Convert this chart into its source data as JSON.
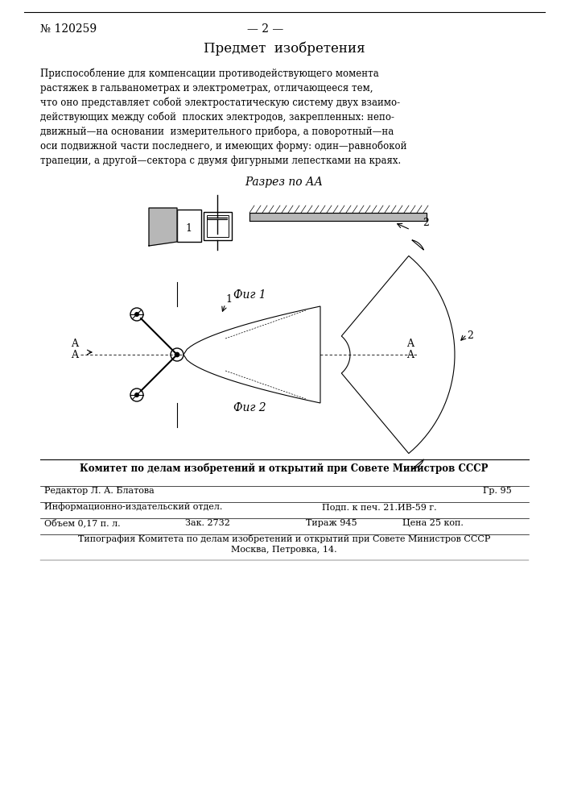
{
  "bg_color": "#ffffff",
  "text_color": "#000000",
  "patent_number": "№ 120259",
  "page_number": "— 2 —",
  "section_title": "Предмет  изобретения",
  "body_text": "Приспособление для компенсации противодействующего момента\nрастяжек в гальванометрах и электрометрах, отличающееся тем,\nчто оно представляет собой электростатическую систему двух взаимо-\nдействующих между собой  плоских электродов, закрепленных: непо-\nдвижный—на основании  измерительного прибора, а поворотный—на\nоси подвижной части последнего, и имеющих форму: один—равнобокой\nтрапеции, а другой—сектора с двумя фигурными лепестками на краях.",
  "fig1_label": "Фиг 1",
  "fig2_label": "Фиг 2",
  "razrez_label": "Разрез по АА",
  "label_1": "1",
  "label_2": "2",
  "label_A": "A",
  "footer_bold": "Комитет по делам изобретений и открытий при Совете Министров СССР",
  "footer_gr": "Гр. 95",
  "footer_editor": "Редактор Л. А. Блатова",
  "footer_info1": "Информационно-издательский отдел.",
  "footer_info2": "Подп. к печ. 21.ИВ-59 г.",
  "footer_info3": "Объем 0,17 п. л.",
  "footer_info4": "Зак. 2732",
  "footer_info5": "Тираж 945",
  "footer_info6": "Цена 25 коп.",
  "footer_typography1": "Типография Комитета по делам изобретений и открытий при Совете Министров СССР",
  "footer_typography2": "Москва, Петровка, 14."
}
